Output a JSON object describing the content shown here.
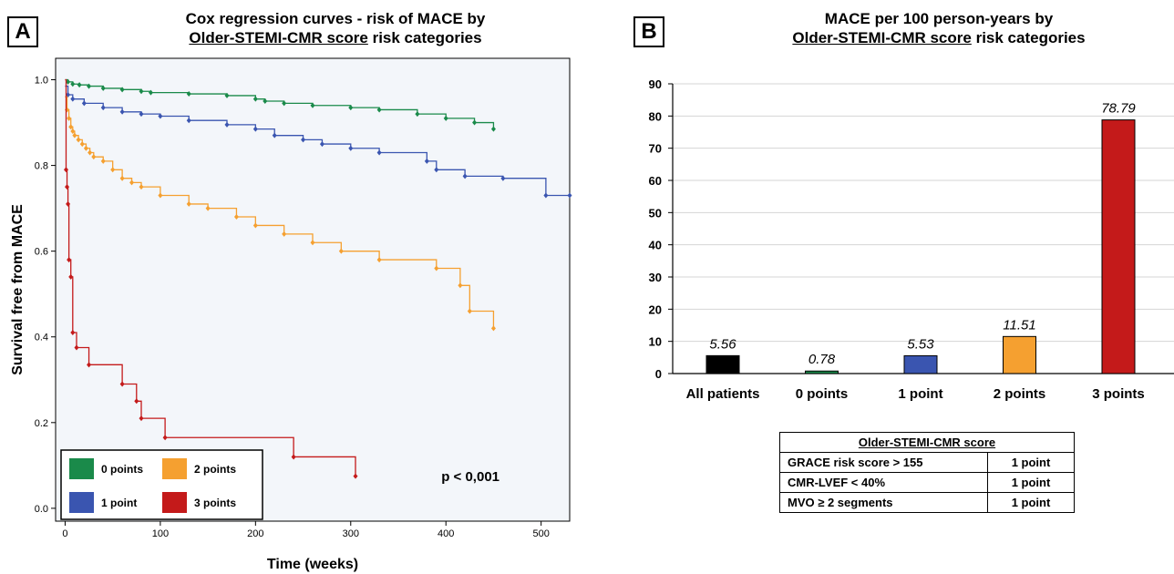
{
  "panel_a": {
    "letter": "A",
    "title_line1": "Cox regression curves - risk of MACE by",
    "title_line2_underlined": "Older-STEMI-CMR score",
    "title_line2_rest": " risk categories",
    "p_value": "p < 0,001"
  },
  "panel_b": {
    "letter": "B",
    "title_line1": "MACE per 100 person-years by",
    "title_line2_underlined": "Older-STEMI-CMR score",
    "title_line2_rest": " risk categories"
  },
  "score_table": {
    "header": "Older-STEMI-CMR score",
    "rows": [
      {
        "criterion": "GRACE risk score > 155",
        "points": "1 point"
      },
      {
        "criterion": "CMR-LVEF < 40%",
        "points": "1 point"
      },
      {
        "criterion": "MVO ≥ 2 segments",
        "points": "1 point"
      }
    ]
  },
  "chart_data": [
    {
      "type": "line",
      "subtype": "step",
      "xlabel": "Time (weeks)",
      "ylabel": "Survival free from MACE",
      "xlim": [
        -10,
        530
      ],
      "ylim": [
        -0.03,
        1.05
      ],
      "xticks": [
        0,
        100,
        200,
        300,
        400,
        500
      ],
      "yticks": [
        0.0,
        0.2,
        0.4,
        0.6,
        0.8,
        1.0
      ],
      "ytick_labels": [
        "0.0",
        "0.2",
        "0.4",
        "0.6",
        "0.8",
        "1.0"
      ],
      "grid": false,
      "background": "#f3f6fa",
      "legend_position": "bottom-left",
      "series": [
        {
          "name": "0 points",
          "color": "#1a8a4a",
          "x": [
            0,
            3,
            8,
            15,
            25,
            40,
            60,
            80,
            90,
            130,
            170,
            200,
            210,
            230,
            260,
            300,
            330,
            370,
            400,
            430,
            450
          ],
          "y": [
            1.0,
            0.995,
            0.99,
            0.988,
            0.985,
            0.98,
            0.977,
            0.973,
            0.97,
            0.967,
            0.963,
            0.955,
            0.95,
            0.945,
            0.94,
            0.935,
            0.93,
            0.92,
            0.91,
            0.9,
            0.885
          ]
        },
        {
          "name": "1 point",
          "color": "#3a55b0",
          "x": [
            0,
            3,
            8,
            20,
            40,
            60,
            80,
            100,
            130,
            170,
            200,
            220,
            250,
            270,
            300,
            330,
            380,
            390,
            420,
            460,
            505,
            530
          ],
          "y": [
            0.985,
            0.965,
            0.955,
            0.945,
            0.935,
            0.925,
            0.92,
            0.915,
            0.905,
            0.895,
            0.885,
            0.87,
            0.86,
            0.85,
            0.84,
            0.83,
            0.81,
            0.79,
            0.775,
            0.77,
            0.73,
            0.73
          ]
        },
        {
          "name": "2 points",
          "color": "#f5a030",
          "x": [
            0,
            2,
            4,
            6,
            8,
            10,
            14,
            18,
            22,
            26,
            30,
            40,
            50,
            60,
            70,
            80,
            100,
            130,
            150,
            180,
            200,
            230,
            260,
            290,
            330,
            390,
            415,
            425,
            450
          ],
          "y": [
            0.96,
            0.93,
            0.91,
            0.89,
            0.88,
            0.87,
            0.86,
            0.85,
            0.84,
            0.83,
            0.82,
            0.81,
            0.79,
            0.77,
            0.76,
            0.75,
            0.73,
            0.71,
            0.7,
            0.68,
            0.66,
            0.64,
            0.62,
            0.6,
            0.58,
            0.56,
            0.52,
            0.46,
            0.42
          ]
        },
        {
          "name": "3 points",
          "color": "#c41a1a",
          "x": [
            0,
            1,
            2,
            3,
            4,
            6,
            8,
            12,
            25,
            60,
            75,
            80,
            105,
            240,
            305
          ],
          "y": [
            1.0,
            0.79,
            0.75,
            0.71,
            0.58,
            0.54,
            0.41,
            0.375,
            0.335,
            0.29,
            0.25,
            0.21,
            0.165,
            0.12,
            0.075
          ]
        }
      ]
    },
    {
      "type": "bar",
      "categories": [
        "All patients",
        "0 points",
        "1 point",
        "2 points",
        "3 points"
      ],
      "values": [
        5.56,
        0.78,
        5.53,
        11.51,
        78.79
      ],
      "value_labels": [
        "5.56",
        "0.78",
        "5.53",
        "11.51",
        "78.79"
      ],
      "colors": [
        "#000000",
        "#1a8a4a",
        "#3a55b0",
        "#f5a030",
        "#c41a1a"
      ],
      "ylim": [
        0,
        90
      ],
      "yticks": [
        0,
        10,
        20,
        30,
        40,
        50,
        60,
        70,
        80,
        90
      ],
      "grid": true
    }
  ]
}
